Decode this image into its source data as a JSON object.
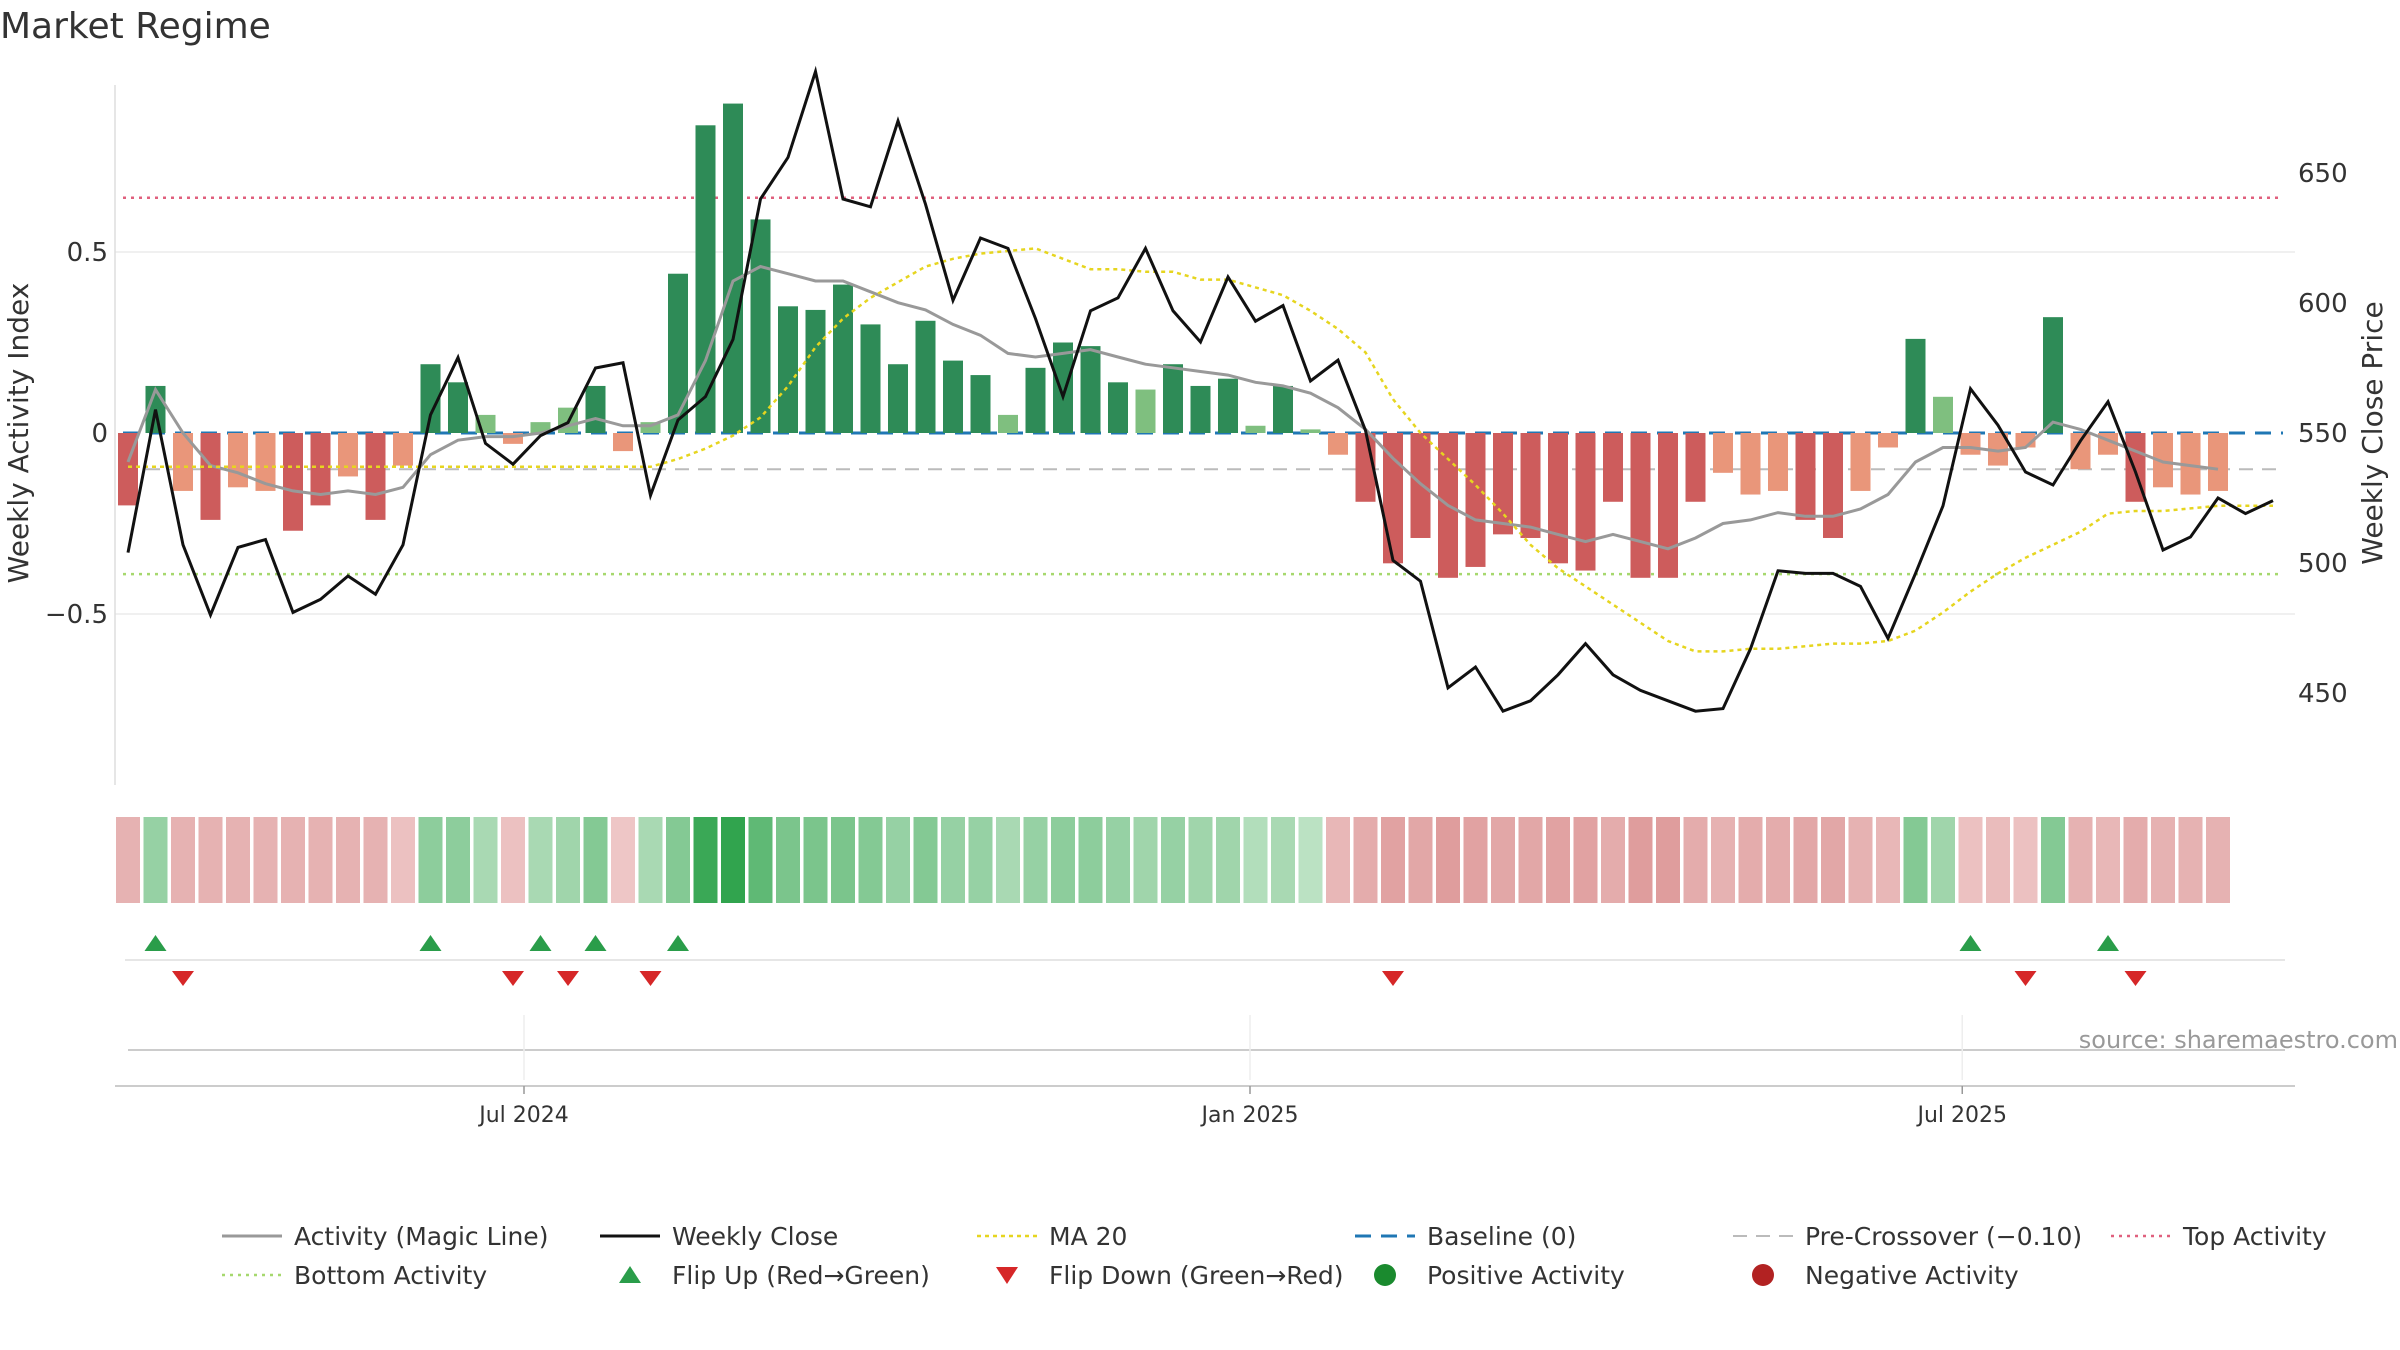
{
  "chart_data": {
    "type": "bar",
    "title": "Market Regime",
    "ylabel_left": "Weekly Activity Index",
    "ylabel_right": "Weekly Close Price",
    "source": "source: sharemaestro.com",
    "y_left_ticks": [
      {
        "v": 0.5,
        "label": "0.5"
      },
      {
        "v": 0,
        "label": "0"
      },
      {
        "v": -0.5,
        "label": "−0.5"
      }
    ],
    "y_right_ticks": [
      {
        "v": 650,
        "label": "650"
      },
      {
        "v": 600,
        "label": "600"
      },
      {
        "v": 550,
        "label": "550"
      },
      {
        "v": 500,
        "label": "500"
      },
      {
        "v": 450,
        "label": "450"
      }
    ],
    "x_ticks": [
      {
        "index": 14.4,
        "label": "Jul 2024"
      },
      {
        "index": 40.8,
        "label": "Jan 2025"
      },
      {
        "index": 66.7,
        "label": "Jul 2025"
      }
    ],
    "reference_lines": {
      "top": 0.65,
      "bottom": -0.39,
      "pre_crossover": -0.1,
      "baseline": 0
    },
    "activity": [
      -0.2,
      0.13,
      -0.16,
      -0.24,
      -0.15,
      -0.16,
      -0.27,
      -0.2,
      -0.12,
      -0.24,
      -0.09,
      0.19,
      0.14,
      0.05,
      -0.03,
      0.03,
      0.07,
      0.13,
      -0.05,
      0.03,
      0.44,
      0.85,
      0.91,
      0.59,
      0.35,
      0.34,
      0.41,
      0.3,
      0.19,
      0.31,
      0.2,
      0.16,
      0.05,
      0.18,
      0.25,
      0.24,
      0.14,
      0.12,
      0.19,
      0.13,
      0.15,
      0.02,
      0.13,
      0.01,
      -0.06,
      -0.19,
      -0.36,
      -0.29,
      -0.4,
      -0.37,
      -0.28,
      -0.29,
      -0.36,
      -0.38,
      -0.19,
      -0.4,
      -0.4,
      -0.19,
      -0.11,
      -0.17,
      -0.16,
      -0.24,
      -0.29,
      -0.16,
      -0.04,
      0.26,
      0.1,
      -0.06,
      -0.09,
      -0.04,
      0.32,
      -0.1,
      -0.06,
      -0.19,
      -0.15,
      -0.17,
      -0.16
    ],
    "magic_line": [
      -0.08,
      0.12,
      0.0,
      -0.09,
      -0.11,
      -0.14,
      -0.16,
      -0.17,
      -0.16,
      -0.17,
      -0.15,
      -0.06,
      -0.02,
      -0.01,
      -0.01,
      0.0,
      0.02,
      0.04,
      0.02,
      0.02,
      0.05,
      0.2,
      0.42,
      0.46,
      0.44,
      0.42,
      0.42,
      0.39,
      0.36,
      0.34,
      0.3,
      0.27,
      0.22,
      0.21,
      0.22,
      0.23,
      0.21,
      0.19,
      0.18,
      0.17,
      0.16,
      0.14,
      0.13,
      0.11,
      0.07,
      0.01,
      -0.07,
      -0.14,
      -0.2,
      -0.24,
      -0.25,
      -0.26,
      -0.28,
      -0.3,
      -0.28,
      -0.3,
      -0.32,
      -0.29,
      -0.25,
      -0.24,
      -0.22,
      -0.23,
      -0.23,
      -0.21,
      -0.17,
      -0.08,
      -0.04,
      -0.04,
      -0.05,
      -0.04,
      0.03,
      0.01,
      -0.02,
      -0.05,
      -0.08,
      -0.09,
      -0.1
    ],
    "weekly_close": [
      504,
      559,
      507,
      480,
      506,
      509,
      481,
      486,
      495,
      488,
      507,
      557,
      579,
      546,
      538,
      549,
      554,
      575,
      577,
      526,
      555,
      564,
      586,
      640,
      656,
      689,
      640,
      637,
      670,
      638,
      601,
      625,
      621,
      594,
      564,
      597,
      602,
      621,
      597,
      585,
      610,
      593,
      599,
      570,
      578,
      551,
      501,
      493,
      452,
      460,
      443,
      447,
      457,
      469,
      457,
      451,
      447,
      443,
      444,
      467,
      497,
      496,
      496,
      491,
      471,
      496,
      522,
      567,
      553,
      535,
      530,
      547,
      562,
      535,
      505,
      510,
      525,
      519,
      524
    ],
    "ma20": [
      537,
      537,
      537,
      537,
      537,
      537,
      537,
      537,
      537,
      537,
      537,
      537,
      537,
      537,
      537,
      537,
      537,
      537,
      537,
      537,
      540,
      544,
      549,
      556,
      568,
      583,
      594,
      602,
      608,
      614,
      617,
      619,
      620,
      621,
      617,
      613,
      613,
      612,
      612,
      609,
      609,
      606,
      603,
      597,
      590,
      581,
      563,
      550,
      540,
      530,
      519,
      507,
      498,
      491,
      484,
      477,
      470,
      466,
      466,
      467,
      467,
      468,
      469,
      469,
      470,
      474,
      481,
      489,
      496,
      502,
      507,
      512,
      519,
      520,
      520,
      521,
      522,
      522,
      522
    ],
    "strip_intensity": [
      0.35,
      0.4,
      0.35,
      0.35,
      0.35,
      0.35,
      0.35,
      0.35,
      0.35,
      0.35,
      0.2,
      0.45,
      0.45,
      0.3,
      0.2,
      0.3,
      0.35,
      0.5,
      0.15,
      0.3,
      0.5,
      0.9,
      0.95,
      0.7,
      0.55,
      0.55,
      0.55,
      0.5,
      0.4,
      0.5,
      0.4,
      0.4,
      0.3,
      0.4,
      0.45,
      0.45,
      0.4,
      0.35,
      0.4,
      0.35,
      0.35,
      0.25,
      0.3,
      0.2,
      0.3,
      0.4,
      0.5,
      0.45,
      0.55,
      0.5,
      0.45,
      0.45,
      0.5,
      0.5,
      0.4,
      0.55,
      0.55,
      0.4,
      0.35,
      0.4,
      0.4,
      0.45,
      0.45,
      0.35,
      0.3,
      0.5,
      0.35,
      0.2,
      0.25,
      0.2,
      0.5,
      0.35,
      0.3,
      0.4,
      0.35,
      0.35,
      0.35
    ],
    "flip_up_idx": [
      1,
      11,
      15,
      17,
      20,
      67,
      72
    ],
    "flip_down_idx": [
      2,
      14,
      16,
      19,
      46,
      69,
      73
    ],
    "legend": [
      {
        "key": "magic",
        "label": "Activity (Magic Line)"
      },
      {
        "key": "close",
        "label": "Weekly Close"
      },
      {
        "key": "ma20",
        "label": "MA 20"
      },
      {
        "key": "baseline",
        "label": "Baseline (0)"
      },
      {
        "key": "pre",
        "label": "Pre-Crossover (−0.10)"
      },
      {
        "key": "top",
        "label": "Top Activity"
      },
      {
        "key": "bottom",
        "label": "Bottom Activity"
      },
      {
        "key": "flipup",
        "label": "Flip Up (Red→Green)"
      },
      {
        "key": "flipdown",
        "label": "Flip Down (Green→Red)"
      },
      {
        "key": "pos",
        "label": "Positive Activity"
      },
      {
        "key": "neg",
        "label": "Negative Activity"
      }
    ],
    "colors": {
      "strong_green": "#2e8b57",
      "light_green": "#7fbf7f",
      "strong_red": "#cd5c5c",
      "light_red": "#e9967a",
      "magic": "#999999",
      "close": "#111111",
      "ma20": "#e6d51f",
      "baseline": "#1f77b4",
      "pre": "#bbbbbb",
      "top": "#e0607e",
      "bottom": "#a6d86e",
      "flipup": "#2a9d4a",
      "flipdown": "#d62728",
      "pos": "#1a8a2e",
      "neg": "#b22222"
    }
  }
}
